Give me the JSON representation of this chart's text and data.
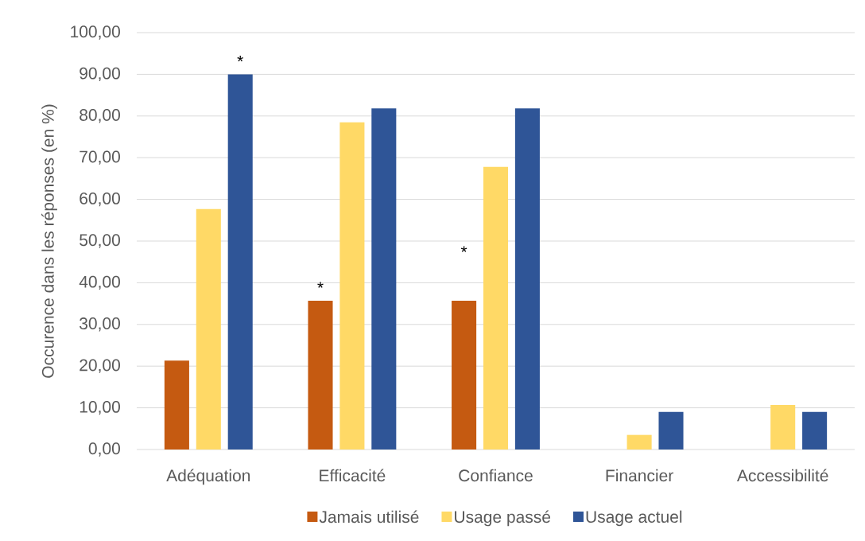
{
  "chart_data": {
    "type": "bar",
    "ylabel": "Occurence dans les réponses (en %)",
    "categories": [
      "Adéquation",
      "Efficacité",
      "Confiance",
      "Financier",
      "Accessibilité"
    ],
    "series": [
      {
        "name": "Jamais utilisé",
        "color": "#c55a11",
        "values": [
          21.3,
          35.7,
          35.7,
          0,
          0
        ]
      },
      {
        "name": "Usage passé",
        "color": "#ffd966",
        "values": [
          57.7,
          78.5,
          67.8,
          3.5,
          10.7
        ]
      },
      {
        "name": "Usage actuel",
        "color": "#2f5597",
        "values": [
          90.0,
          81.8,
          81.8,
          9.0,
          9.0
        ]
      }
    ],
    "ylim": [
      0,
      100
    ],
    "yticks": [
      {
        "value": 0,
        "label": "0,00"
      },
      {
        "value": 10,
        "label": "10,00"
      },
      {
        "value": 20,
        "label": "20,00"
      },
      {
        "value": 30,
        "label": "30,00"
      },
      {
        "value": 40,
        "label": "40,00"
      },
      {
        "value": 50,
        "label": "50,00"
      },
      {
        "value": 60,
        "label": "60,00"
      },
      {
        "value": 70,
        "label": "70,00"
      },
      {
        "value": 80,
        "label": "80,00"
      },
      {
        "value": 90,
        "label": "90,00"
      },
      {
        "value": 100,
        "label": "100,00"
      }
    ],
    "grid": "y",
    "legend": "bottom",
    "annotations": [
      "*",
      "*",
      "*"
    ]
  }
}
